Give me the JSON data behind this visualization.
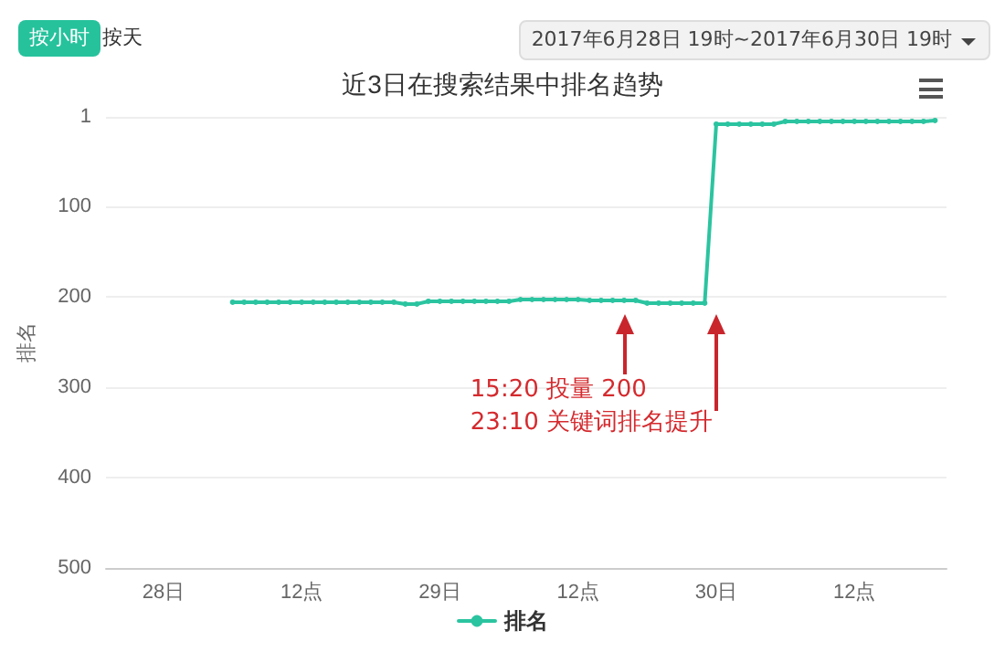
{
  "chart_data": {
    "type": "line",
    "title": "近3日在搜索结果中排名趋势",
    "ylabel": "排名",
    "annotations": [
      "按小时",
      "按天",
      "2017年6月28日 19时~2017年6月30日 19时",
      "15:20 投量 200",
      "23:10 关键词排名提升"
    ],
    "x": [
      "2017-06-28T06:00",
      "2017-06-28T07:00",
      "2017-06-28T08:00",
      "2017-06-28T09:00",
      "2017-06-28T10:00",
      "2017-06-28T11:00",
      "2017-06-28T12:00",
      "2017-06-28T13:00",
      "2017-06-28T14:00",
      "2017-06-28T15:00",
      "2017-06-28T16:00",
      "2017-06-28T17:00",
      "2017-06-28T18:00",
      "2017-06-28T19:00",
      "2017-06-28T20:00",
      "2017-06-28T21:00",
      "2017-06-28T22:00",
      "2017-06-28T23:00",
      "2017-06-29T00:00",
      "2017-06-29T01:00",
      "2017-06-29T02:00",
      "2017-06-29T03:00",
      "2017-06-29T04:00",
      "2017-06-29T05:00",
      "2017-06-29T06:00",
      "2017-06-29T07:00",
      "2017-06-29T08:00",
      "2017-06-29T09:00",
      "2017-06-29T10:00",
      "2017-06-29T11:00",
      "2017-06-29T12:00",
      "2017-06-29T13:00",
      "2017-06-29T14:00",
      "2017-06-29T15:00",
      "2017-06-29T16:00",
      "2017-06-29T17:00",
      "2017-06-29T18:00",
      "2017-06-29T19:00",
      "2017-06-29T20:00",
      "2017-06-29T21:00",
      "2017-06-29T22:00",
      "2017-06-29T23:00",
      "2017-06-30T00:00",
      "2017-06-30T01:00",
      "2017-06-30T02:00",
      "2017-06-30T03:00",
      "2017-06-30T04:00",
      "2017-06-30T05:00",
      "2017-06-30T06:00",
      "2017-06-30T07:00",
      "2017-06-30T08:00",
      "2017-06-30T09:00",
      "2017-06-30T10:00",
      "2017-06-30T11:00",
      "2017-06-30T12:00",
      "2017-06-30T13:00",
      "2017-06-30T14:00",
      "2017-06-30T15:00",
      "2017-06-30T16:00",
      "2017-06-30T17:00",
      "2017-06-30T18:00",
      "2017-06-30T19:00"
    ],
    "series": [
      {
        "name": "排名",
        "color": "#2bc4a0",
        "values": [
          206,
          206,
          206,
          206,
          206,
          206,
          206,
          206,
          206,
          206,
          206,
          206,
          206,
          206,
          206,
          208,
          208,
          205,
          205,
          205,
          205,
          205,
          205,
          205,
          205,
          203,
          203,
          203,
          203,
          203,
          203,
          204,
          204,
          204,
          204,
          204,
          207,
          207,
          207,
          207,
          207,
          207,
          9,
          9,
          9,
          9,
          9,
          9,
          6,
          6,
          6,
          6,
          6,
          6,
          6,
          6,
          6,
          6,
          6,
          6,
          6,
          5
        ]
      }
    ],
    "xlim": [
      "2017-06-27T19:00",
      "2017-06-30T20:00"
    ],
    "xticks": [
      {
        "value": "2017-06-28T00:00",
        "label": "28日"
      },
      {
        "value": "2017-06-28T12:00",
        "label": "12点"
      },
      {
        "value": "2017-06-29T00:00",
        "label": "29日"
      },
      {
        "value": "2017-06-29T12:00",
        "label": "12点"
      },
      {
        "value": "2017-06-30T00:00",
        "label": "30日"
      },
      {
        "value": "2017-06-30T12:00",
        "label": "12点"
      }
    ],
    "ylim": [
      500,
      1
    ],
    "yticks": [
      1,
      100,
      200,
      300,
      400,
      500
    ],
    "grid": "y",
    "legend": "bottom",
    "marker": "circle",
    "line_style": "solid"
  }
}
